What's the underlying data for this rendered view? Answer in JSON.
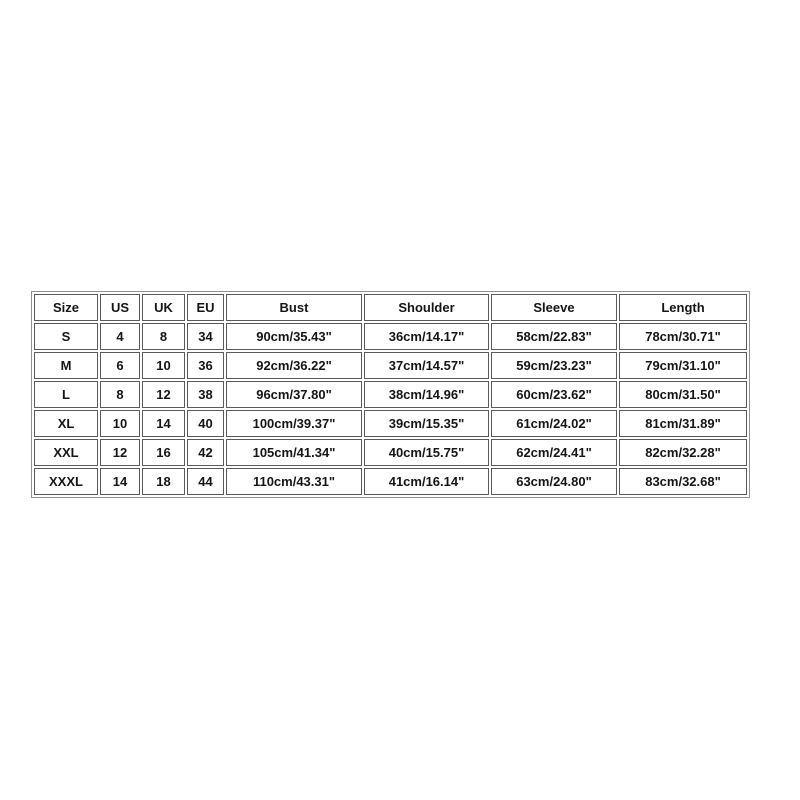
{
  "page": {
    "background_color": "#ffffff",
    "text_color": "#151515",
    "table_outer_border_color": "#919191",
    "table_cell_border_color": "#595959"
  },
  "chart_data": {
    "type": "table",
    "title": "",
    "columns": [
      "Size",
      "US",
      "UK",
      "EU",
      "Bust",
      "Shoulder",
      "Sleeve",
      "Length"
    ],
    "rows": [
      [
        "S",
        "4",
        "8",
        "34",
        "90cm/35.43\"",
        "36cm/14.17\"",
        "58cm/22.83\"",
        "78cm/30.71\""
      ],
      [
        "M",
        "6",
        "10",
        "36",
        "92cm/36.22\"",
        "37cm/14.57\"",
        "59cm/23.23\"",
        "79cm/31.10\""
      ],
      [
        "L",
        "8",
        "12",
        "38",
        "96cm/37.80\"",
        "38cm/14.96\"",
        "60cm/23.62\"",
        "80cm/31.50\""
      ],
      [
        "XL",
        "10",
        "14",
        "40",
        "100cm/39.37\"",
        "39cm/15.35\"",
        "61cm/24.02\"",
        "81cm/31.89\""
      ],
      [
        "XXL",
        "12",
        "16",
        "42",
        "105cm/41.34\"",
        "40cm/15.75\"",
        "62cm/24.41\"",
        "82cm/32.28\""
      ],
      [
        "XXXL",
        "14",
        "18",
        "44",
        "110cm/43.31\"",
        "41cm/16.14\"",
        "63cm/24.80\"",
        "83cm/32.68\""
      ]
    ]
  }
}
